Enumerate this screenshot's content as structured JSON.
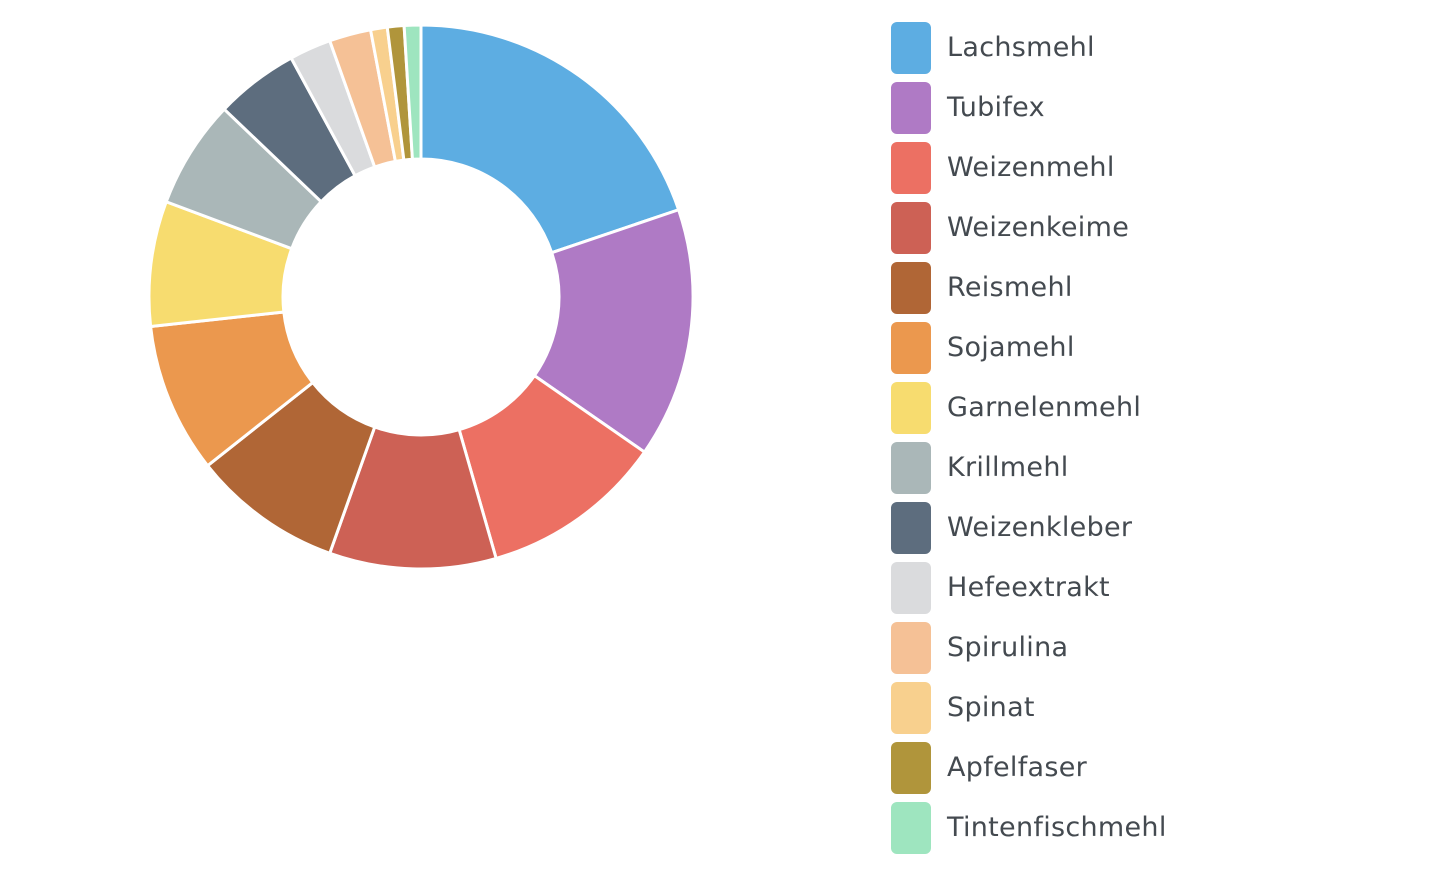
{
  "chart_data": {
    "type": "pie",
    "variant": "donut",
    "legend_position": "right",
    "categories": [
      "Lachsmehl",
      "Tubifex",
      "Weizenmehl",
      "Weizenkeime",
      "Reismehl",
      "Sojamehl",
      "Garnelenmehl",
      "Krillmehl",
      "Weizenkleber",
      "Hefeextrakt",
      "Spirulina",
      "Spinat",
      "Apfelfaser",
      "Tintenfischmehl"
    ],
    "values": [
      20.0,
      15.0,
      11.0,
      10.0,
      9.0,
      9.0,
      7.5,
      6.5,
      5.0,
      2.5,
      2.5,
      1.0,
      1.0,
      1.0
    ],
    "colors": [
      "#5dade2",
      "#af7ac5",
      "#ec7063",
      "#cd6155",
      "#b06636",
      "#eb984e",
      "#f7dc6f",
      "#aab7b8",
      "#5d6d7e",
      "#dadbdd",
      "#f5c196",
      "#f8d08e",
      "#b0953b",
      "#9ee5bf"
    ]
  }
}
